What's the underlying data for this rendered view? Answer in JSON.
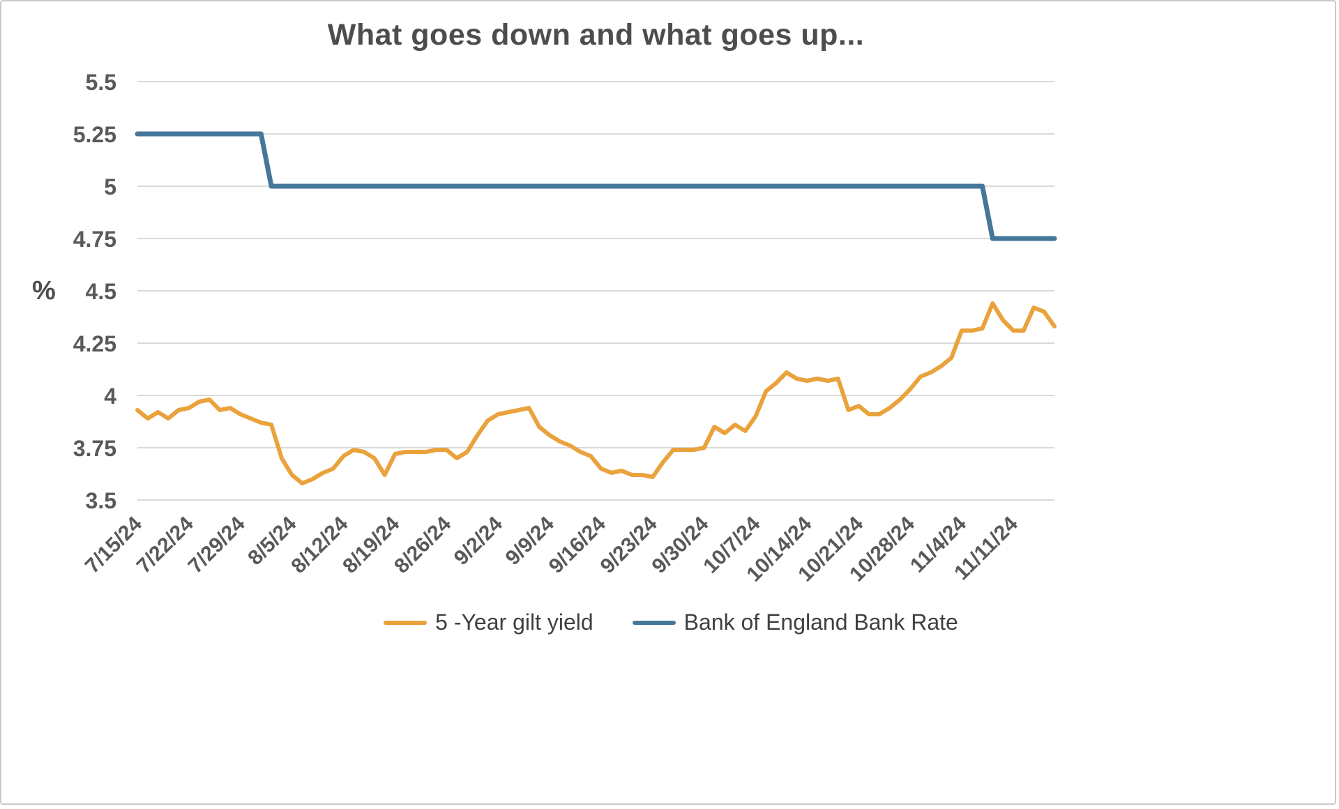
{
  "page": {
    "background": "#FFFFFF",
    "border_color": "#C9C9C9"
  },
  "chart_data": {
    "type": "line",
    "title": "What goes down and what goes up...",
    "xlabel": "",
    "ylabel": "%",
    "ylim": [
      3.5,
      5.5
    ],
    "ytick_step": 0.25,
    "ytick_labels": [
      "5.5",
      "5.25",
      "5",
      "4.75",
      "4.5",
      "4.25",
      "4",
      "3.75",
      "3.5"
    ],
    "x_tick_labels": [
      "7/15/24",
      "7/22/24",
      "7/29/24",
      "8/5/24",
      "8/12/24",
      "8/19/24",
      "8/26/24",
      "9/2/24",
      "9/9/24",
      "9/16/24",
      "9/23/24",
      "9/30/24",
      "10/7/24",
      "10/14/24",
      "10/21/24",
      "10/28/24",
      "11/4/24",
      "11/11/24"
    ],
    "x_ticks_every": 5,
    "grid": true,
    "legend_position": "bottom",
    "colors": {
      "grid": "#D9D9D9",
      "text": "#595959",
      "title": "#4D4D4D"
    },
    "series": [
      {
        "name": "5 -Year gilt yield",
        "color": "#EAA23C",
        "width": 6,
        "values": [
          3.93,
          3.89,
          3.92,
          3.89,
          3.93,
          3.94,
          3.97,
          3.98,
          3.93,
          3.94,
          3.91,
          3.89,
          3.87,
          3.86,
          3.7,
          3.62,
          3.58,
          3.6,
          3.63,
          3.65,
          3.71,
          3.74,
          3.73,
          3.7,
          3.62,
          3.72,
          3.73,
          3.73,
          3.73,
          3.74,
          3.74,
          3.7,
          3.73,
          3.81,
          3.88,
          3.91,
          3.92,
          3.93,
          3.94,
          3.85,
          3.81,
          3.78,
          3.76,
          3.73,
          3.71,
          3.65,
          3.63,
          3.64,
          3.62,
          3.62,
          3.61,
          3.68,
          3.74,
          3.74,
          3.74,
          3.75,
          3.85,
          3.82,
          3.86,
          3.83,
          3.9,
          4.02,
          4.06,
          4.11,
          4.08,
          4.07,
          4.08,
          4.07,
          4.08,
          3.93,
          3.95,
          3.91,
          3.91,
          3.94,
          3.98,
          4.03,
          4.09,
          4.11,
          4.14,
          4.18,
          4.31,
          4.31,
          4.32,
          4.44,
          4.36,
          4.31,
          4.31,
          4.42,
          4.4,
          4.33
        ]
      },
      {
        "name": "Bank of England Bank Rate",
        "color": "#45779B",
        "width": 7,
        "values": [
          5.25,
          5.25,
          5.25,
          5.25,
          5.25,
          5.25,
          5.25,
          5.25,
          5.25,
          5.25,
          5.25,
          5.25,
          5.25,
          5.0,
          5.0,
          5.0,
          5.0,
          5.0,
          5.0,
          5.0,
          5.0,
          5.0,
          5.0,
          5.0,
          5.0,
          5.0,
          5.0,
          5.0,
          5.0,
          5.0,
          5.0,
          5.0,
          5.0,
          5.0,
          5.0,
          5.0,
          5.0,
          5.0,
          5.0,
          5.0,
          5.0,
          5.0,
          5.0,
          5.0,
          5.0,
          5.0,
          5.0,
          5.0,
          5.0,
          5.0,
          5.0,
          5.0,
          5.0,
          5.0,
          5.0,
          5.0,
          5.0,
          5.0,
          5.0,
          5.0,
          5.0,
          5.0,
          5.0,
          5.0,
          5.0,
          5.0,
          5.0,
          5.0,
          5.0,
          5.0,
          5.0,
          5.0,
          5.0,
          5.0,
          5.0,
          5.0,
          5.0,
          5.0,
          5.0,
          5.0,
          5.0,
          5.0,
          5.0,
          4.75,
          4.75,
          4.75,
          4.75,
          4.75,
          4.75,
          4.75
        ]
      }
    ]
  }
}
